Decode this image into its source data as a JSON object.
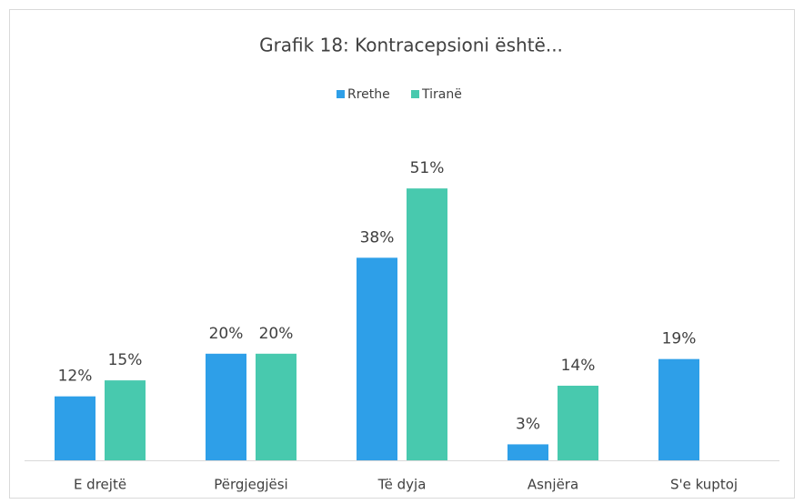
{
  "chart_data": {
    "type": "bar",
    "title": "Grafik 18: Kontracepsioni është...",
    "categories": [
      "E drejtë",
      "Përgjegjësi",
      "Të dyja",
      "Asnjëra",
      "S'e kuptoj"
    ],
    "series": [
      {
        "name": "Rrethe",
        "color": "#2e9fe8",
        "values": [
          12,
          20,
          38,
          3,
          19
        ],
        "value_labels": [
          "12%",
          "20%",
          "38%",
          "3%",
          "19%"
        ]
      },
      {
        "name": "Tiranë",
        "color": "#48c9ae",
        "values": [
          15,
          20,
          51,
          14,
          null
        ],
        "value_labels": [
          "15%",
          "20%",
          "51%",
          "14%",
          null
        ]
      }
    ],
    "legend": "top"
  }
}
